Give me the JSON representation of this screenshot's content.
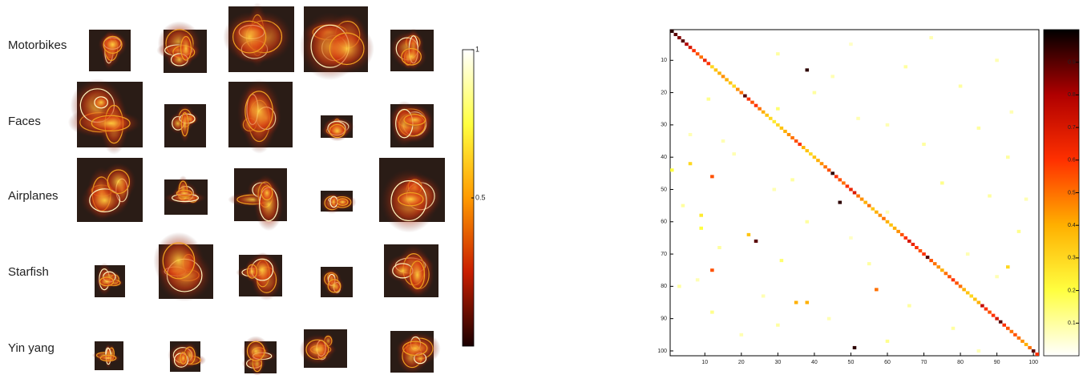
{
  "chart_data": [
    {
      "type": "colorbar",
      "categories": [
        "Motorbikes",
        "Faces",
        "Airplanes",
        "Starfish",
        "Yin yang"
      ],
      "ylim": [
        0,
        1
      ],
      "yticks": [
        0.5,
        1
      ],
      "colormap": [
        "#1a0000",
        "#c81e00",
        "#ff9a00",
        "#ffff40",
        "#ffffff"
      ]
    },
    {
      "type": "heatmap",
      "xlim": [
        0.5,
        101.5
      ],
      "ylim": [
        0.5,
        101.5
      ],
      "xticks": [
        10,
        20,
        30,
        40,
        50,
        60,
        70,
        80,
        90,
        100
      ],
      "yticks": [
        10,
        20,
        30,
        40,
        50,
        60,
        70,
        80,
        90,
        100
      ],
      "clim": [
        0,
        1
      ],
      "cticks": [
        0.1,
        0.2,
        0.3,
        0.4,
        0.5,
        0.6,
        0.7,
        0.8,
        0.9
      ],
      "colormap": [
        "#ffffff",
        "#ffff40",
        "#ffb000",
        "#ff3000",
        "#b00000",
        "#000000"
      ],
      "cells": [
        [
          1,
          1,
          0.95
        ],
        [
          2,
          2,
          0.9
        ],
        [
          3,
          3,
          0.85
        ],
        [
          4,
          4,
          0.9
        ],
        [
          5,
          5,
          0.8
        ],
        [
          6,
          6,
          0.7
        ],
        [
          7,
          7,
          0.6
        ],
        [
          8,
          8,
          0.55
        ],
        [
          9,
          9,
          0.5
        ],
        [
          10,
          10,
          0.65
        ],
        [
          11,
          11,
          0.6
        ],
        [
          12,
          12,
          0.3
        ],
        [
          13,
          13,
          0.35
        ],
        [
          14,
          14,
          0.4
        ],
        [
          15,
          15,
          0.45
        ],
        [
          16,
          16,
          0.4
        ],
        [
          17,
          17,
          0.35
        ],
        [
          18,
          18,
          0.3
        ],
        [
          19,
          19,
          0.45
        ],
        [
          20,
          20,
          0.5
        ],
        [
          21,
          21,
          0.9
        ],
        [
          22,
          22,
          0.6
        ],
        [
          23,
          23,
          0.55
        ],
        [
          24,
          24,
          0.6
        ],
        [
          25,
          25,
          0.5
        ],
        [
          26,
          26,
          0.4
        ],
        [
          27,
          27,
          0.35
        ],
        [
          28,
          28,
          0.3
        ],
        [
          29,
          29,
          0.25
        ],
        [
          30,
          30,
          0.3
        ],
        [
          31,
          31,
          0.35
        ],
        [
          32,
          32,
          0.4
        ],
        [
          33,
          33,
          0.45
        ],
        [
          34,
          34,
          0.5
        ],
        [
          35,
          35,
          0.55
        ],
        [
          36,
          36,
          0.6
        ],
        [
          37,
          37,
          0.4
        ],
        [
          38,
          38,
          0.35
        ],
        [
          39,
          39,
          0.3
        ],
        [
          40,
          40,
          0.35
        ],
        [
          41,
          41,
          0.4
        ],
        [
          42,
          42,
          0.45
        ],
        [
          43,
          43,
          0.5
        ],
        [
          44,
          44,
          0.55
        ],
        [
          45,
          45,
          0.95
        ],
        [
          46,
          46,
          0.6
        ],
        [
          47,
          47,
          0.55
        ],
        [
          48,
          48,
          0.5
        ],
        [
          49,
          49,
          0.6
        ],
        [
          50,
          50,
          0.65
        ],
        [
          51,
          51,
          0.7
        ],
        [
          52,
          52,
          0.5
        ],
        [
          53,
          53,
          0.45
        ],
        [
          54,
          54,
          0.4
        ],
        [
          55,
          55,
          0.5
        ],
        [
          56,
          56,
          0.35
        ],
        [
          57,
          57,
          0.4
        ],
        [
          58,
          58,
          0.45
        ],
        [
          59,
          59,
          0.5
        ],
        [
          60,
          60,
          0.4
        ],
        [
          61,
          61,
          0.35
        ],
        [
          62,
          62,
          0.4
        ],
        [
          63,
          63,
          0.45
        ],
        [
          64,
          64,
          0.55
        ],
        [
          65,
          65,
          0.6
        ],
        [
          66,
          66,
          0.7
        ],
        [
          67,
          67,
          0.65
        ],
        [
          68,
          68,
          0.6
        ],
        [
          69,
          69,
          0.55
        ],
        [
          70,
          70,
          0.6
        ],
        [
          71,
          71,
          0.9
        ],
        [
          72,
          72,
          0.55
        ],
        [
          73,
          73,
          0.5
        ],
        [
          74,
          74,
          0.45
        ],
        [
          75,
          75,
          0.4
        ],
        [
          76,
          76,
          0.5
        ],
        [
          77,
          77,
          0.55
        ],
        [
          78,
          78,
          0.6
        ],
        [
          79,
          79,
          0.55
        ],
        [
          80,
          80,
          0.5
        ],
        [
          81,
          81,
          0.4
        ],
        [
          82,
          82,
          0.35
        ],
        [
          83,
          83,
          0.3
        ],
        [
          84,
          84,
          0.35
        ],
        [
          85,
          85,
          0.4
        ],
        [
          86,
          86,
          0.75
        ],
        [
          87,
          87,
          0.6
        ],
        [
          88,
          88,
          0.55
        ],
        [
          89,
          89,
          0.6
        ],
        [
          90,
          90,
          0.7
        ],
        [
          91,
          91,
          0.9
        ],
        [
          92,
          92,
          0.6
        ],
        [
          93,
          93,
          0.55
        ],
        [
          94,
          94,
          0.5
        ],
        [
          95,
          95,
          0.55
        ],
        [
          96,
          96,
          0.5
        ],
        [
          97,
          97,
          0.45
        ],
        [
          98,
          98,
          0.4
        ],
        [
          99,
          99,
          0.5
        ],
        [
          100,
          100,
          0.9
        ],
        [
          101,
          101,
          0.6
        ],
        [
          13,
          38,
          0.95
        ],
        [
          54,
          47,
          0.95
        ],
        [
          66,
          24,
          0.9
        ],
        [
          99,
          51,
          0.95
        ],
        [
          46,
          12,
          0.55
        ],
        [
          75,
          12,
          0.55
        ],
        [
          81,
          57,
          0.5
        ],
        [
          85,
          35,
          0.4
        ],
        [
          85,
          38,
          0.4
        ],
        [
          64,
          22,
          0.35
        ],
        [
          42,
          6,
          0.3
        ],
        [
          58,
          9,
          0.25
        ],
        [
          62,
          9,
          0.2
        ],
        [
          44,
          1,
          0.2
        ],
        [
          8,
          30,
          0.1
        ],
        [
          12,
          65,
          0.1
        ],
        [
          15,
          45,
          0.08
        ],
        [
          18,
          80,
          0.1
        ],
        [
          22,
          11,
          0.12
        ],
        [
          25,
          30,
          0.15
        ],
        [
          28,
          52,
          0.08
        ],
        [
          31,
          85,
          0.1
        ],
        [
          33,
          6,
          0.08
        ],
        [
          36,
          70,
          0.1
        ],
        [
          39,
          18,
          0.08
        ],
        [
          40,
          93,
          0.1
        ],
        [
          48,
          75,
          0.12
        ],
        [
          50,
          29,
          0.08
        ],
        [
          52,
          88,
          0.1
        ],
        [
          55,
          4,
          0.1
        ],
        [
          57,
          60,
          0.08
        ],
        [
          60,
          38,
          0.1
        ],
        [
          63,
          96,
          0.12
        ],
        [
          68,
          14,
          0.1
        ],
        [
          70,
          82,
          0.08
        ],
        [
          72,
          31,
          0.15
        ],
        [
          73,
          55,
          0.1
        ],
        [
          77,
          90,
          0.08
        ],
        [
          80,
          3,
          0.1
        ],
        [
          83,
          26,
          0.08
        ],
        [
          86,
          66,
          0.1
        ],
        [
          88,
          12,
          0.12
        ],
        [
          90,
          44,
          0.08
        ],
        [
          93,
          78,
          0.1
        ],
        [
          95,
          20,
          0.08
        ],
        [
          97,
          60,
          0.12
        ],
        [
          3,
          72,
          0.08
        ],
        [
          5,
          50,
          0.06
        ],
        [
          10,
          90,
          0.08
        ],
        [
          20,
          40,
          0.1
        ],
        [
          26,
          94,
          0.08
        ],
        [
          35,
          15,
          0.08
        ],
        [
          47,
          34,
          0.1
        ],
        [
          53,
          98,
          0.08
        ],
        [
          65,
          50,
          0.06
        ],
        [
          74,
          93,
          0.3
        ],
        [
          78,
          8,
          0.08
        ],
        [
          92,
          30,
          0.1
        ],
        [
          100,
          85,
          0.08
        ],
        [
          30,
          60,
          0.08
        ]
      ]
    }
  ]
}
